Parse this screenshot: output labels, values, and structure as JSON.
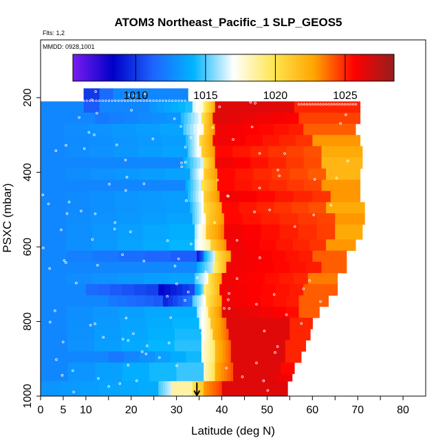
{
  "chart_data": {
    "type": "heatmap",
    "title": "ATOM3 Northeast_Pacific_1 SLP_GEOS5",
    "subtitle_flights": "Flts: 1,2",
    "subtitle_dates": "MMDD: 0928,1001",
    "xlabel": "Latitude (deg N)",
    "ylabel": "PSXC (mbar)",
    "xlim": [
      0,
      85
    ],
    "ylim": [
      1000,
      0
    ],
    "x_ticks": [
      0,
      5,
      10,
      20,
      30,
      40,
      50,
      60,
      70,
      80
    ],
    "y_ticks": [
      200,
      400,
      600,
      800,
      1000
    ],
    "colorbar": {
      "range": [
        1005.5,
        1028.5
      ],
      "ticks": [
        1010,
        1015,
        1020,
        1025
      ],
      "colors": [
        "#7a1cf0",
        "#0000c8",
        "#1e64ff",
        "#00b4ff",
        "#ffffff",
        "#ffe650",
        "#ffa500",
        "#ff0000",
        "#961e1e"
      ]
    },
    "bands": [
      {
        "p": [
          175,
          210
        ],
        "segs": [
          [
            9.5,
            13,
            1010
          ],
          [
            13,
            16,
            1011.5
          ],
          [
            16,
            32.5,
            1012.5
          ]
        ]
      },
      {
        "p": [
          210,
          240
        ],
        "segs": [
          [
            0,
            9.5,
            1012.5
          ],
          [
            9.5,
            13,
            1011
          ],
          [
            13,
            24,
            1012.5
          ],
          [
            24,
            33.5,
            1013
          ],
          [
            33.5,
            36,
            1016.5
          ],
          [
            36,
            38.5,
            1019.5
          ],
          [
            38.5,
            56,
            1026.5
          ],
          [
            56,
            70.5,
            1025
          ]
        ]
      },
      {
        "p": [
          240,
          270
        ],
        "segs": [
          [
            0,
            12,
            1012.5
          ],
          [
            12,
            31,
            1012
          ],
          [
            31,
            35.5,
            1014.5
          ],
          [
            35.5,
            38,
            1020
          ],
          [
            38,
            57,
            1026.5
          ],
          [
            57,
            70.5,
            1024.5
          ]
        ]
      },
      {
        "p": [
          270,
          300
        ],
        "segs": [
          [
            0,
            31.5,
            1012.5
          ],
          [
            31.5,
            36,
            1015
          ],
          [
            36,
            38.5,
            1021
          ],
          [
            38.5,
            58,
            1026
          ],
          [
            58,
            69.5,
            1024
          ]
        ]
      },
      {
        "p": [
          300,
          330
        ],
        "segs": [
          [
            0,
            32,
            1012.5
          ],
          [
            32,
            35,
            1014.5
          ],
          [
            35,
            38,
            1020.5
          ],
          [
            38,
            60,
            1026
          ],
          [
            60,
            70.5,
            1023
          ]
        ]
      },
      {
        "p": [
          330,
          360
        ],
        "segs": [
          [
            0,
            32.5,
            1012.5
          ],
          [
            32.5,
            35.5,
            1015
          ],
          [
            35.5,
            38.5,
            1021
          ],
          [
            38.5,
            62,
            1025.5
          ],
          [
            62,
            71,
            1022.5
          ]
        ]
      },
      {
        "p": [
          360,
          390
        ],
        "segs": [
          [
            0,
            31.5,
            1012.5
          ],
          [
            31.5,
            36,
            1014
          ],
          [
            36,
            38.5,
            1020
          ],
          [
            38.5,
            62,
            1026
          ],
          [
            62,
            71,
            1022
          ]
        ]
      },
      {
        "p": [
          390,
          420
        ],
        "segs": [
          [
            0,
            33,
            1012.5
          ],
          [
            33,
            36,
            1015
          ],
          [
            36,
            39,
            1021
          ],
          [
            39,
            63,
            1025.5
          ],
          [
            63,
            70.5,
            1022
          ]
        ]
      },
      {
        "p": [
          420,
          450
        ],
        "segs": [
          [
            0,
            32,
            1012.5
          ],
          [
            32,
            35.5,
            1014
          ],
          [
            35.5,
            39,
            1020
          ],
          [
            39,
            62,
            1025.5
          ],
          [
            62,
            70.5,
            1023
          ]
        ]
      },
      {
        "p": [
          450,
          480
        ],
        "segs": [
          [
            0,
            32.5,
            1012.5
          ],
          [
            32.5,
            36,
            1014.5
          ],
          [
            36,
            39.5,
            1021
          ],
          [
            39.5,
            64,
            1026
          ],
          [
            64,
            70.5,
            1023
          ]
        ]
      },
      {
        "p": [
          480,
          510
        ],
        "segs": [
          [
            0,
            33,
            1012.5
          ],
          [
            33,
            36,
            1014.5
          ],
          [
            36,
            40,
            1020.5
          ],
          [
            40,
            63,
            1025.5
          ],
          [
            63,
            71.5,
            1022.5
          ]
        ]
      },
      {
        "p": [
          510,
          540
        ],
        "segs": [
          [
            0,
            33.5,
            1012.5
          ],
          [
            33.5,
            36.5,
            1015
          ],
          [
            36.5,
            40.5,
            1021
          ],
          [
            40.5,
            65,
            1025.5
          ],
          [
            65,
            71.5,
            1023
          ]
        ]
      },
      {
        "p": [
          540,
          580
        ],
        "segs": [
          [
            0,
            34,
            1012.5
          ],
          [
            34,
            36.5,
            1016
          ],
          [
            36.5,
            40.5,
            1021.5
          ],
          [
            40.5,
            65,
            1026
          ],
          [
            65,
            71,
            1022.5
          ]
        ]
      },
      {
        "p": [
          580,
          610
        ],
        "segs": [
          [
            0,
            34,
            1012.5
          ],
          [
            34,
            37.5,
            1016.5
          ],
          [
            37.5,
            41,
            1021
          ],
          [
            41,
            63,
            1026
          ],
          [
            63,
            69.5,
            1023
          ]
        ]
      },
      {
        "p": [
          610,
          640
        ],
        "segs": [
          [
            0,
            34.5,
            1012.5
          ],
          [
            34.5,
            36,
            1009
          ],
          [
            36,
            38.5,
            1014
          ],
          [
            38.5,
            42,
            1020
          ],
          [
            42,
            60,
            1026
          ],
          [
            60,
            67.5,
            1024
          ]
        ]
      },
      {
        "p": [
          640,
          670
        ],
        "segs": [
          [
            0,
            34.5,
            1012.5
          ],
          [
            34.5,
            38,
            1014
          ],
          [
            38,
            41,
            1019
          ],
          [
            41,
            62,
            1026
          ],
          [
            62,
            67.5,
            1024
          ]
        ]
      },
      {
        "p": [
          670,
          700
        ],
        "segs": [
          [
            0,
            34,
            1012.5
          ],
          [
            34,
            37,
            1015
          ],
          [
            37,
            40,
            1020
          ],
          [
            40,
            59,
            1026
          ],
          [
            59,
            65.5,
            1023.5
          ]
        ]
      },
      {
        "p": [
          700,
          730
        ],
        "segs": [
          [
            0,
            10,
            1012.5
          ],
          [
            10,
            26,
            1011.5
          ],
          [
            26,
            34,
            1008.5
          ],
          [
            34,
            36,
            1013
          ],
          [
            36,
            39.5,
            1019
          ],
          [
            39.5,
            58,
            1026
          ],
          [
            58,
            65.5,
            1024
          ]
        ]
      },
      {
        "p": [
          730,
          760
        ],
        "segs": [
          [
            0,
            15,
            1012.5
          ],
          [
            15,
            27,
            1012
          ],
          [
            27,
            33.5,
            1009.5
          ],
          [
            33.5,
            36.5,
            1015
          ],
          [
            36.5,
            40,
            1020
          ],
          [
            40,
            57,
            1026
          ],
          [
            57,
            63.5,
            1024
          ]
        ]
      },
      {
        "p": [
          760,
          790
        ],
        "segs": [
          [
            0,
            34.5,
            1012.5
          ],
          [
            34.5,
            37,
            1016
          ],
          [
            37,
            40,
            1021
          ],
          [
            40,
            57,
            1026.5
          ],
          [
            57,
            61.5,
            1024
          ]
        ]
      },
      {
        "p": [
          790,
          820
        ],
        "segs": [
          [
            0,
            35,
            1012.5
          ],
          [
            35,
            37.5,
            1016.5
          ],
          [
            37.5,
            41,
            1021.5
          ],
          [
            41,
            55,
            1026.5
          ],
          [
            55,
            60,
            1025
          ]
        ]
      },
      {
        "p": [
          820,
          850
        ],
        "segs": [
          [
            0,
            35.5,
            1012.5
          ],
          [
            35.5,
            38,
            1017
          ],
          [
            38,
            41.5,
            1022
          ],
          [
            41.5,
            55,
            1026.5
          ],
          [
            55,
            59.5,
            1025
          ]
        ]
      },
      {
        "p": [
          850,
          880
        ],
        "segs": [
          [
            0,
            35.5,
            1012.5
          ],
          [
            35.5,
            38.5,
            1017.5
          ],
          [
            38.5,
            42,
            1022
          ],
          [
            42,
            54,
            1026.5
          ],
          [
            54,
            58.5,
            1025
          ]
        ]
      },
      {
        "p": [
          880,
          910
        ],
        "segs": [
          [
            0,
            15,
            1012.5
          ],
          [
            15,
            35.5,
            1012
          ],
          [
            35.5,
            38.5,
            1017.5
          ],
          [
            38.5,
            42,
            1022
          ],
          [
            42,
            54,
            1026.5
          ],
          [
            54,
            57.5,
            1025
          ]
        ]
      },
      {
        "p": [
          910,
          940
        ],
        "segs": [
          [
            0,
            36,
            1012.5
          ],
          [
            36,
            38.5,
            1018
          ],
          [
            38.5,
            42.5,
            1022.5
          ],
          [
            42.5,
            53,
            1026.5
          ],
          [
            53,
            56,
            1025.5
          ]
        ]
      },
      {
        "p": [
          940,
          960
        ],
        "segs": [
          [
            0,
            36,
            1012.5
          ],
          [
            36,
            38.5,
            1018
          ],
          [
            38.5,
            42.5,
            1022.5
          ],
          [
            42.5,
            52,
            1026.5
          ],
          [
            52,
            55.5,
            1026
          ]
        ]
      },
      {
        "p": [
          960,
          1000
        ],
        "segs": [
          [
            0,
            26,
            1013
          ],
          [
            26,
            29,
            1015
          ],
          [
            29,
            33.5,
            1018.5
          ],
          [
            33.5,
            36,
            1020
          ],
          [
            36,
            40,
            1023
          ],
          [
            40,
            54.5,
            1026.5
          ]
        ]
      }
    ],
    "arrow_marker": {
      "lat": 34.5,
      "p_from": 960,
      "p_to": 1000
    }
  }
}
